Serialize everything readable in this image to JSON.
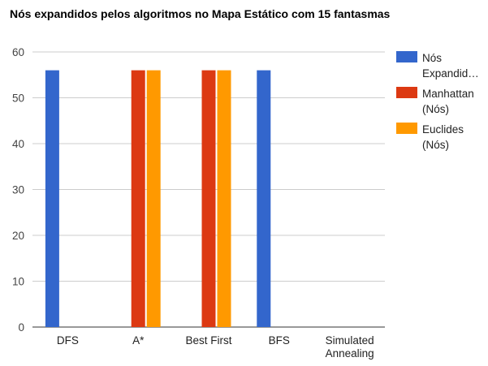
{
  "chart_data": {
    "type": "bar",
    "title": "Nós expandidos pelos algoritmos no Mapa Estático com 15 fantasmas",
    "categories": [
      "DFS",
      "A*",
      "Best First",
      "BFS",
      "Simulated Annealing"
    ],
    "category_lines": [
      [
        "DFS"
      ],
      [
        "A*"
      ],
      [
        "Best First"
      ],
      [
        "BFS"
      ],
      [
        "Simulated",
        "Annealing"
      ]
    ],
    "series": [
      {
        "name": "Nós Expandidos",
        "legend_lines": [
          "Nós",
          "Expandid…"
        ],
        "color": "#3366cc",
        "values": [
          56,
          0,
          0,
          56,
          0
        ]
      },
      {
        "name": "Manhattan (Nós)",
        "legend_lines": [
          "Manhattan",
          "(Nós)"
        ],
        "color": "#dc3912",
        "values": [
          0,
          56,
          56,
          0,
          0
        ]
      },
      {
        "name": "Euclides (Nós)",
        "legend_lines": [
          "Euclides",
          "(Nós)"
        ],
        "color": "#ff9900",
        "values": [
          0,
          56,
          56,
          0,
          0
        ]
      }
    ],
    "ylim": [
      0,
      60
    ],
    "yticks": [
      0,
      10,
      20,
      30,
      40,
      50,
      60
    ],
    "xlabel": "",
    "ylabel": "",
    "grid": true,
    "legend_position": "right"
  }
}
